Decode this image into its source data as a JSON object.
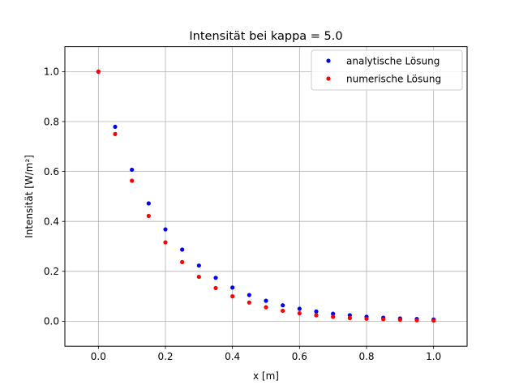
{
  "chart_data": {
    "type": "scatter",
    "title": "Intensität bei kappa = 5.0",
    "xlabel": "x [m]",
    "ylabel": "Intensität [W/m²]",
    "xlim": [
      -0.1,
      1.1
    ],
    "ylim": [
      -0.1,
      1.1
    ],
    "xticks": [
      0.0,
      0.2,
      0.4,
      0.6,
      0.8,
      1.0
    ],
    "yticks": [
      0.0,
      0.2,
      0.4,
      0.6,
      0.8,
      1.0
    ],
    "xtick_labels": [
      "0.0",
      "0.2",
      "0.4",
      "0.6",
      "0.8",
      "1.0"
    ],
    "ytick_labels": [
      "0.0",
      "0.2",
      "0.4",
      "0.6",
      "0.8",
      "1.0"
    ],
    "grid": true,
    "legend_position": "top-right",
    "x": [
      0.0,
      0.05,
      0.1,
      0.15,
      0.2,
      0.25,
      0.3,
      0.35,
      0.4,
      0.45,
      0.5,
      0.55,
      0.6,
      0.65,
      0.7,
      0.75,
      0.8,
      0.85,
      0.9,
      0.95,
      1.0
    ],
    "series": [
      {
        "name": "analytische Lösung",
        "color": "#0000ff",
        "values": [
          1.0,
          0.779,
          0.607,
          0.472,
          0.368,
          0.287,
          0.223,
          0.174,
          0.135,
          0.105,
          0.082,
          0.064,
          0.05,
          0.039,
          0.03,
          0.024,
          0.018,
          0.014,
          0.011,
          0.009,
          0.007
        ]
      },
      {
        "name": "numerische Lösung",
        "color": "#ff0000",
        "values": [
          1.0,
          0.75,
          0.563,
          0.422,
          0.316,
          0.237,
          0.178,
          0.133,
          0.1,
          0.075,
          0.056,
          0.042,
          0.032,
          0.024,
          0.018,
          0.013,
          0.01,
          0.008,
          0.006,
          0.004,
          0.003
        ]
      }
    ]
  }
}
